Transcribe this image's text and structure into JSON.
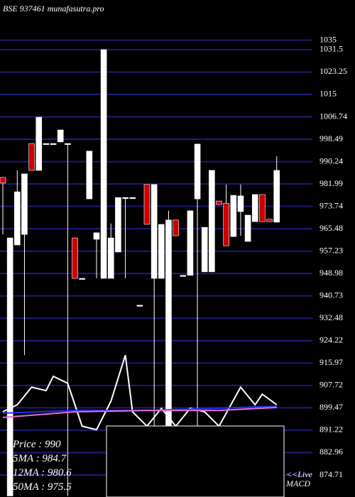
{
  "chart_data": {
    "type": "candlestick",
    "title": "BSE 937461 munafasutra.pro",
    "ylim": [
      866.6,
      1049.8
    ],
    "yticks": [
      1035,
      1031.5,
      1023.25,
      1015,
      1006.74,
      998.49,
      990.24,
      981.99,
      973.74,
      965.48,
      957.23,
      948.98,
      940.73,
      932.48,
      924.22,
      915.97,
      907.72,
      899.47,
      891.22,
      882.96,
      874.71
    ],
    "grid": true,
    "grid_color": "#1c1c78",
    "up_color": "#ffffff",
    "down_color": "#cc0000",
    "candles": [
      {
        "o": 984.4,
        "h": 984.4,
        "l": 963.4,
        "c": 982.3
      },
      {
        "o": 867,
        "h": 962.1,
        "l": 867,
        "c": 962.1
      },
      {
        "o": 959.5,
        "h": 987.0,
        "l": 959.5,
        "c": 979.1
      },
      {
        "o": 963.4,
        "h": 985.7,
        "l": 918.9,
        "c": 985.7
      },
      {
        "o": 996.9,
        "h": 996.9,
        "l": 987.0,
        "c": 987.0
      },
      {
        "o": 987.0,
        "h": 1006.6,
        "l": 987.0,
        "c": 1006.6
      },
      {
        "o": 996.9,
        "h": 996.9,
        "l": 996.9,
        "c": 996.9
      },
      {
        "o": 996.9,
        "h": 996.9,
        "l": 996.9,
        "c": 996.9
      },
      {
        "o": 997.5,
        "h": 1001.9,
        "l": 997.5,
        "c": 1001.9
      },
      {
        "o": 996.9,
        "h": 996.9,
        "l": 867,
        "c": 996.9
      },
      {
        "o": 962.1,
        "h": 962.1,
        "l": 947.2,
        "c": 947.2
      },
      {
        "o": 947.2,
        "h": 947.2,
        "l": 947.2,
        "c": 947.2
      },
      {
        "o": 976.5,
        "h": 994.1,
        "l": 976.5,
        "c": 994.1
      },
      {
        "o": 961.6,
        "h": 964.0,
        "l": 947.2,
        "c": 964.0
      },
      {
        "o": 947.2,
        "h": 1031.5,
        "l": 947.2,
        "c": 1031.5
      },
      {
        "o": 947.2,
        "h": 967.4,
        "l": 947.2,
        "c": 962.1
      },
      {
        "o": 956.9,
        "h": 977.0,
        "l": 956.9,
        "c": 977.0
      },
      {
        "o": 977.0,
        "h": 977.0,
        "l": 947.2,
        "c": 977.0
      },
      {
        "o": 977.0,
        "h": 977.0,
        "l": 977.0,
        "c": 977.0
      },
      {
        "o": 937.3,
        "h": 937.3,
        "l": 937.3,
        "c": 937.3
      },
      {
        "o": 981.8,
        "h": 981.8,
        "l": 967.1,
        "c": 967.1
      },
      {
        "o": 947.2,
        "h": 981.8,
        "l": 867,
        "c": 981.8
      },
      {
        "o": 947.2,
        "h": 967.1,
        "l": 947.2,
        "c": 967.1
      },
      {
        "o": 892.7,
        "h": 972.1,
        "l": 892.7,
        "c": 968.7
      },
      {
        "o": 968.7,
        "h": 968.7,
        "l": 962.9,
        "c": 962.9
      },
      {
        "o": 948.3,
        "h": 948.3,
        "l": 948.3,
        "c": 948.3
      },
      {
        "o": 948.3,
        "h": 972.1,
        "l": 948.3,
        "c": 972.1
      },
      {
        "o": 976.5,
        "h": 996.7,
        "l": 892.7,
        "c": 996.7
      },
      {
        "o": 949.6,
        "h": 966.0,
        "l": 949.6,
        "c": 966.0
      },
      {
        "o": 949.6,
        "h": 987.0,
        "l": 949.6,
        "c": 987.0
      },
      {
        "o": 975.7,
        "h": 975.7,
        "l": 974.4,
        "c": 974.4
      },
      {
        "o": 974.9,
        "h": 981.8,
        "l": 959.2,
        "c": 959.2
      },
      {
        "o": 962.6,
        "h": 977.8,
        "l": 962.6,
        "c": 977.8
      },
      {
        "o": 971.8,
        "h": 981.8,
        "l": 962.9,
        "c": 977.6
      },
      {
        "o": 960.8,
        "h": 970.5,
        "l": 960.8,
        "c": 970.5
      },
      {
        "o": 968.1,
        "h": 978.1,
        "l": 968.1,
        "c": 978.1
      },
      {
        "o": 978.1,
        "h": 978.1,
        "l": 968.1,
        "c": 968.1
      },
      {
        "o": 969.0,
        "h": 969.0,
        "l": 968.1,
        "c": 968.1
      },
      {
        "o": 967.9,
        "h": 992.2,
        "l": 967.9,
        "c": 987.0
      }
    ],
    "lines": [
      {
        "color": "#ffffff",
        "x": [
          0,
          2,
          4,
          6,
          7,
          9,
          11,
          13,
          15,
          17,
          18,
          20,
          22,
          24,
          26,
          28,
          30,
          33,
          35,
          36,
          38
        ],
        "values": [
          898.0,
          900.6,
          907.1,
          905.8,
          911.1,
          908.5,
          892.7,
          891.4,
          901.9,
          918.9,
          898.0,
          892.7,
          899.3,
          892.7,
          899.3,
          898.0,
          892.7,
          907.1,
          900.6,
          904.5,
          900.6
        ]
      },
      {
        "color": "#2a2aff",
        "x": [
          0,
          10,
          20,
          30,
          38
        ],
        "values": [
          897.5,
          898.5,
          898.5,
          899.3,
          900.1
        ]
      },
      {
        "color": "#e070d0",
        "x": [
          0,
          10,
          20,
          30,
          38
        ],
        "values": [
          895.9,
          898.0,
          898.5,
          898.5,
          899.6
        ]
      }
    ],
    "legend_texts": [
      "Price  : 990",
      "5MA : 984.7",
      "12MA : 980.6",
      "50MA : 975.5"
    ],
    "live_label": [
      "<<Live",
      "MACD"
    ]
  }
}
